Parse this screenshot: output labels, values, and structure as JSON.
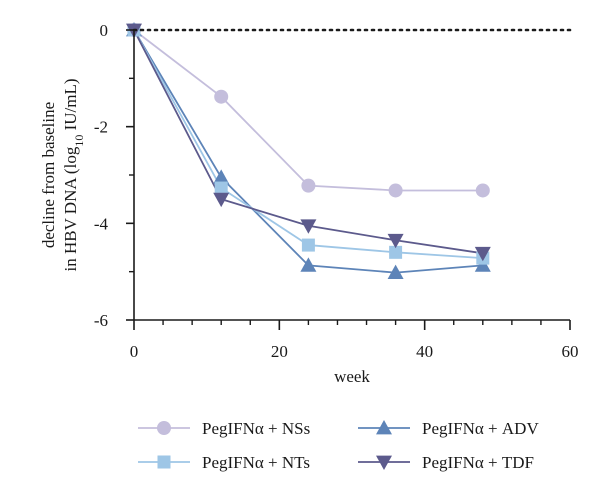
{
  "chart_data": {
    "type": "line",
    "xlabel": "week",
    "ylabel_line1": "decline from baseline",
    "ylabel_line2_pre": "in HBV DNA (log",
    "ylabel_line2_sub": "10",
    "ylabel_line2_post": " IU/mL)",
    "xlim": [
      0,
      60
    ],
    "ylim": [
      -6,
      0
    ],
    "x_ticks": [
      0,
      20,
      40,
      60
    ],
    "x_tick_labels": [
      "0",
      "20",
      "40",
      "60"
    ],
    "x_minor_step": 4,
    "y_ticks": [
      0,
      -2,
      -4,
      -6
    ],
    "y_tick_labels": [
      "0",
      "-2",
      "-4",
      "-6"
    ],
    "reference_line": 0,
    "grid": false,
    "legend_position": "bottom",
    "series": [
      {
        "name": "PegIFNα + NSs",
        "marker": "circle",
        "color": "#c4bedc",
        "x": [
          0,
          12,
          24,
          36,
          48
        ],
        "y": [
          0,
          -1.38,
          -3.22,
          -3.32,
          -3.32
        ]
      },
      {
        "name": "PegIFNα + ADV",
        "marker": "triangle-up",
        "color": "#5d84b8",
        "x": [
          0,
          12,
          24,
          36,
          48
        ],
        "y": [
          0,
          -3.05,
          -4.87,
          -5.02,
          -4.87
        ]
      },
      {
        "name": "PegIFNα + NTs",
        "marker": "square",
        "color": "#9ec6e6",
        "x": [
          0,
          12,
          24,
          36,
          48
        ],
        "y": [
          0,
          -3.27,
          -4.45,
          -4.6,
          -4.72
        ]
      },
      {
        "name": "PegIFNα + TDF",
        "marker": "triangle-down",
        "color": "#5c5a8c",
        "x": [
          0,
          12,
          24,
          36,
          48
        ],
        "y": [
          0,
          -3.5,
          -4.05,
          -4.35,
          -4.62
        ]
      }
    ]
  }
}
